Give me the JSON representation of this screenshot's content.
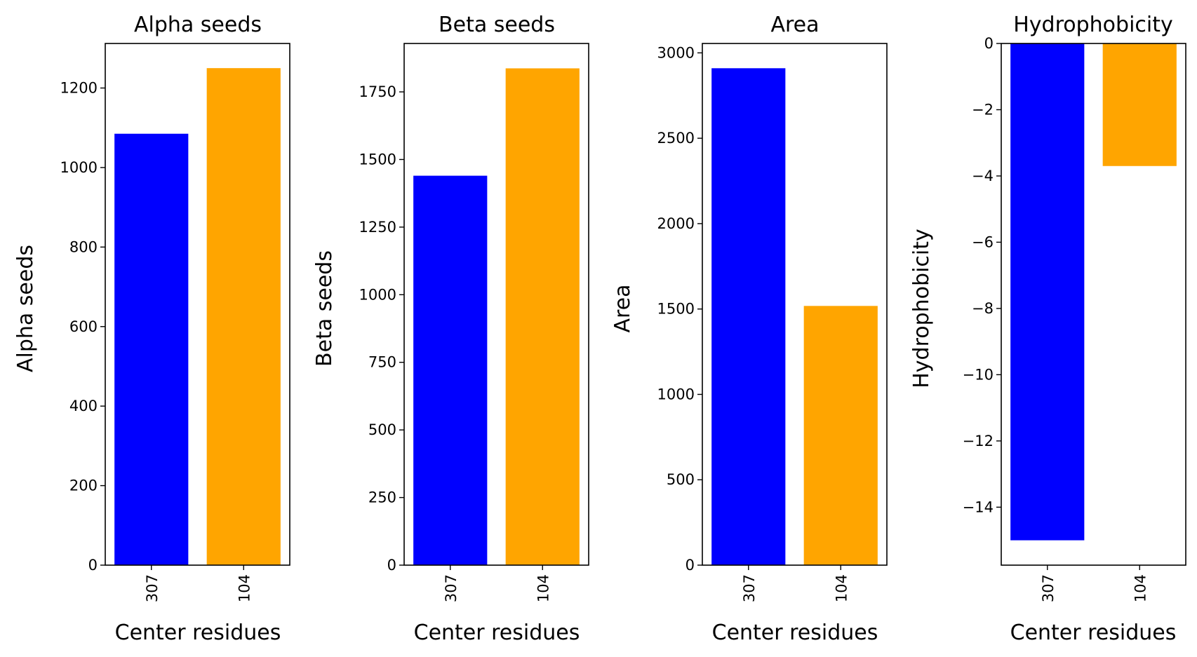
{
  "chart_data": [
    {
      "type": "bar",
      "title": "Alpha seeds",
      "xlabel": "Center residues",
      "ylabel": "Alpha seeds",
      "categories": [
        "307",
        "104"
      ],
      "values": [
        1085,
        1250
      ],
      "colors": [
        "#0000ff",
        "#ffa500"
      ],
      "ylim": [
        0,
        1312
      ],
      "yticks": [
        0,
        200,
        400,
        600,
        800,
        1000,
        1200
      ],
      "grid": false
    },
    {
      "type": "bar",
      "title": "Beta seeds",
      "xlabel": "Center residues",
      "ylabel": "Beta seeds",
      "categories": [
        "307",
        "104"
      ],
      "values": [
        1440,
        1837
      ],
      "colors": [
        "#0000ff",
        "#ffa500"
      ],
      "ylim": [
        0,
        1929
      ],
      "yticks": [
        0,
        250,
        500,
        750,
        1000,
        1250,
        1500,
        1750
      ],
      "grid": false
    },
    {
      "type": "bar",
      "title": "Area",
      "xlabel": "Center residues",
      "ylabel": "Area",
      "categories": [
        "307",
        "104"
      ],
      "values": [
        2910,
        1518
      ],
      "colors": [
        "#0000ff",
        "#ffa500"
      ],
      "ylim": [
        0,
        3055
      ],
      "yticks": [
        0,
        500,
        1000,
        1500,
        2000,
        2500,
        3000
      ],
      "grid": false
    },
    {
      "type": "bar",
      "title": "Hydrophobicity",
      "xlabel": "Center residues",
      "ylabel": "Hydrophobicity",
      "categories": [
        "307",
        "104"
      ],
      "values": [
        -15.0,
        -3.7
      ],
      "colors": [
        "#0000ff",
        "#ffa500"
      ],
      "ylim": [
        -15.75,
        0
      ],
      "yticks": [
        0,
        -2,
        -4,
        -6,
        -8,
        -10,
        -12,
        -14
      ],
      "ytick_labels": [
        "0",
        "−2",
        "−4",
        "−6",
        "−8",
        "−10",
        "−12",
        "−14"
      ],
      "grid": false
    }
  ]
}
